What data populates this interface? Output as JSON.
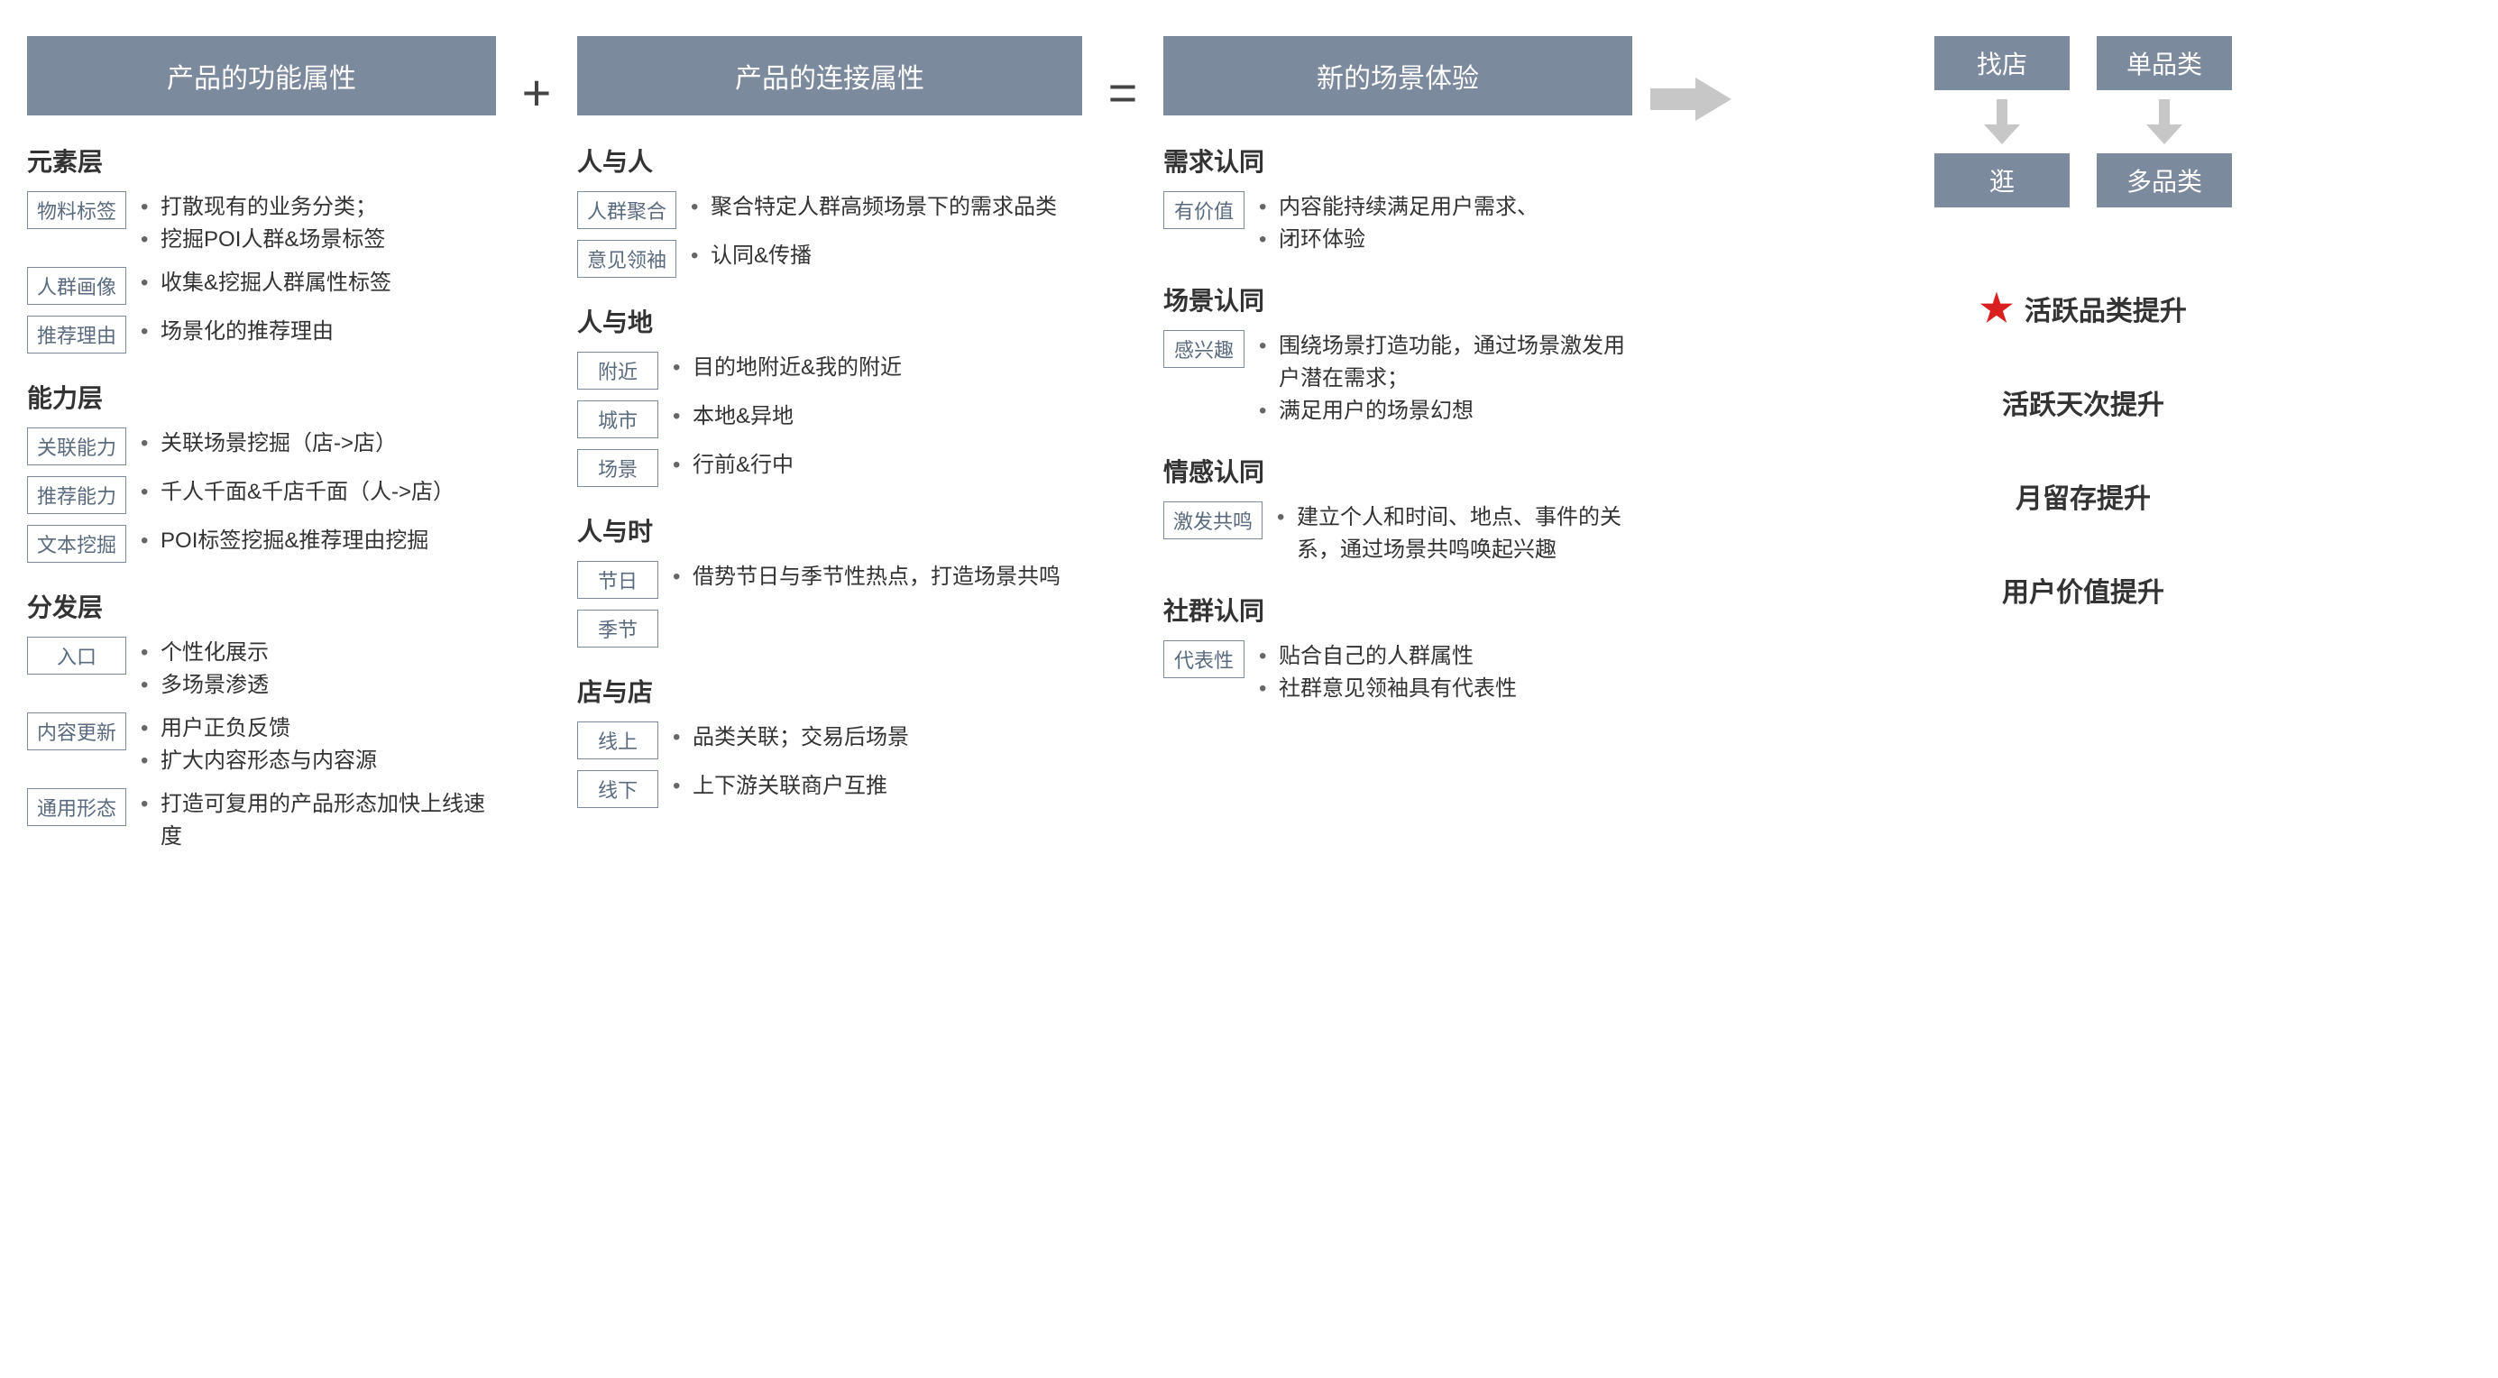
{
  "colors": {
    "box_bg": "#7b8a9c",
    "box_text": "#ffffff",
    "tag_border": "#7b8a9c",
    "tag_text": "#5a6b80",
    "body_text": "#333333",
    "star": "#d91f1f",
    "arrow": "#c7c7c7"
  },
  "operators": {
    "plus": "+",
    "equals": "="
  },
  "col1": {
    "header": "产品的功能属性",
    "sections": [
      {
        "title": "元素层",
        "items": [
          {
            "tag": "物料标签",
            "bullets": [
              "打散现有的业务分类；",
              "挖掘POI人群&场景标签"
            ]
          },
          {
            "tag": "人群画像",
            "bullets": [
              "收集&挖掘人群属性标签"
            ]
          },
          {
            "tag": "推荐理由",
            "bullets": [
              "场景化的推荐理由"
            ]
          }
        ]
      },
      {
        "title": "能力层",
        "items": [
          {
            "tag": "关联能力",
            "bullets": [
              "关联场景挖掘（店->店）"
            ]
          },
          {
            "tag": "推荐能力",
            "bullets": [
              "千人千面&千店千面（人->店）"
            ]
          },
          {
            "tag": "文本挖掘",
            "bullets": [
              "POI标签挖掘&推荐理由挖掘"
            ]
          }
        ]
      },
      {
        "title": "分发层",
        "items": [
          {
            "tag": "入口",
            "bullets": [
              "个性化展示",
              "多场景渗透"
            ]
          },
          {
            "tag": "内容更新",
            "bullets": [
              "用户正负反馈",
              "扩大内容形态与内容源"
            ]
          },
          {
            "tag": "通用形态",
            "bullets": [
              "打造可复用的产品形态加快上线速度"
            ]
          }
        ]
      }
    ]
  },
  "col2": {
    "header": "产品的连接属性",
    "sections": [
      {
        "title": "人与人",
        "items": [
          {
            "tag": "人群聚合",
            "bullets": [
              "聚合特定人群高频场景下的需求品类"
            ]
          },
          {
            "tag": "意见领袖",
            "bullets": [
              "认同&传播"
            ]
          }
        ]
      },
      {
        "title": "人与地",
        "items": [
          {
            "tag": "附近",
            "bullets": [
              "目的地附近&我的附近"
            ]
          },
          {
            "tag": "城市",
            "bullets": [
              "本地&异地"
            ]
          },
          {
            "tag": "场景",
            "bullets": [
              "行前&行中"
            ]
          }
        ]
      },
      {
        "title": "人与时",
        "items": [
          {
            "tag": "节日",
            "bullets": [
              "借势节日与季节性热点，打造场景共鸣"
            ]
          },
          {
            "tag": "季节",
            "bullets": []
          }
        ]
      },
      {
        "title": "店与店",
        "items": [
          {
            "tag": "线上",
            "bullets": [
              "品类关联；交易后场景"
            ]
          },
          {
            "tag": "线下",
            "bullets": [
              "上下游关联商户互推"
            ]
          }
        ]
      }
    ]
  },
  "col3": {
    "header": "新的场景体验",
    "sections": [
      {
        "title": "需求认同",
        "items": [
          {
            "tag": "有价值",
            "bullets": [
              "内容能持续满足用户需求、",
              "闭环体验"
            ]
          }
        ]
      },
      {
        "title": "场景认同",
        "items": [
          {
            "tag": "感兴趣",
            "bullets": [
              "围绕场景打造功能，通过场景激发用户潜在需求；",
              "满足用户的场景幻想"
            ]
          }
        ]
      },
      {
        "title": "情感认同",
        "items": [
          {
            "tag": "激发共鸣",
            "bullets": [
              "建立个人和时间、地点、事件的关系，通过场景共鸣唤起兴趣"
            ]
          }
        ]
      },
      {
        "title": "社群认同",
        "items": [
          {
            "tag": "代表性",
            "bullets": [
              "贴合自己的人群属性",
              "社群意见领袖具有代表性"
            ]
          }
        ]
      }
    ]
  },
  "right": {
    "top_from": [
      "找店",
      "单品类"
    ],
    "top_to": [
      "逛",
      "多品类"
    ],
    "outcomes": [
      {
        "star": true,
        "text": "活跃品类提升"
      },
      {
        "star": false,
        "text": "活跃天次提升"
      },
      {
        "star": false,
        "text": "月留存提升"
      },
      {
        "star": false,
        "text": "用户价值提升"
      }
    ]
  }
}
